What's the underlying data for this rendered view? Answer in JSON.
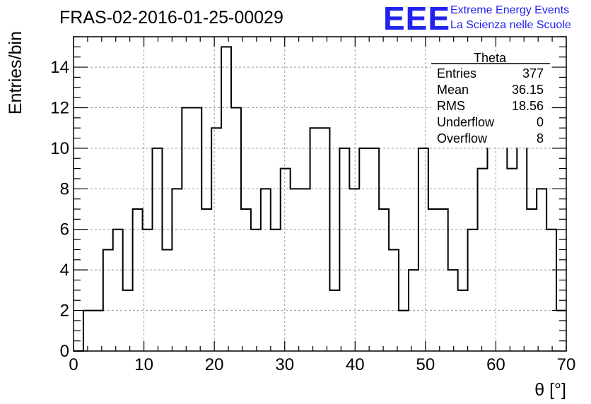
{
  "run_title": "FRAS-02-2016-01-25-00029",
  "logo": {
    "mark": "EEE",
    "line1": "Extreme Energy Events",
    "line2": "La Scienza nelle Scuole",
    "color": "#2222ee"
  },
  "stats_box": {
    "title": "Theta",
    "rows": [
      {
        "label": "Entries",
        "value": "377"
      },
      {
        "label": "Mean",
        "value": "36.15"
      },
      {
        "label": "RMS",
        "value": "18.56"
      },
      {
        "label": "Underflow",
        "value": "0"
      },
      {
        "label": "Overflow",
        "value": "8"
      }
    ]
  },
  "chart_data": {
    "type": "bar",
    "style": "step-histogram",
    "xlabel": "θ [°]",
    "ylabel": "Entries/bin",
    "xlim": [
      0,
      70
    ],
    "ylim": [
      0,
      15.5
    ],
    "xticks": [
      0,
      10,
      20,
      30,
      40,
      50,
      60,
      70
    ],
    "yticks": [
      0,
      2,
      4,
      6,
      8,
      10,
      12,
      14
    ],
    "grid": true,
    "bin_width": 1.4,
    "bin_edges_start": 0,
    "values": [
      0,
      2,
      2,
      5,
      6,
      3,
      7,
      6,
      10,
      5,
      8,
      12,
      12,
      7,
      11,
      15,
      12,
      7,
      6,
      8,
      6,
      9,
      8,
      8,
      11,
      11,
      3,
      10,
      8,
      10,
      10,
      7,
      5,
      2,
      4,
      10,
      7,
      7,
      4,
      3,
      6,
      9,
      11,
      13,
      9,
      11,
      7,
      8,
      6,
      2
    ],
    "line_color": "#000000"
  }
}
